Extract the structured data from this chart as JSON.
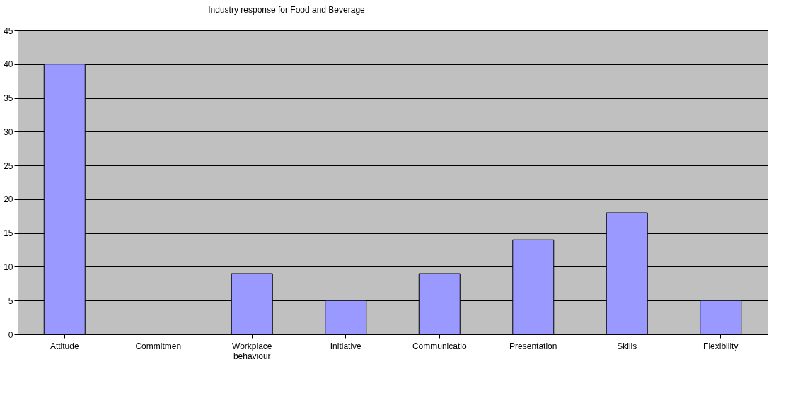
{
  "chart_data": {
    "type": "bar",
    "title": "Industry response for Food and Beverage",
    "categories": [
      "Attitude",
      "Commitmen",
      "Workplace behaviour",
      "Initiative",
      "Communicatio",
      "Presentation",
      "Skills",
      "Flexibility"
    ],
    "values": [
      40,
      null,
      9,
      5,
      9,
      14,
      18,
      5
    ],
    "color": "#9999ff",
    "ylim": [
      0,
      45
    ],
    "yticks": [
      0,
      5,
      10,
      15,
      20,
      25,
      30,
      35,
      40,
      45
    ],
    "grid": "y"
  }
}
